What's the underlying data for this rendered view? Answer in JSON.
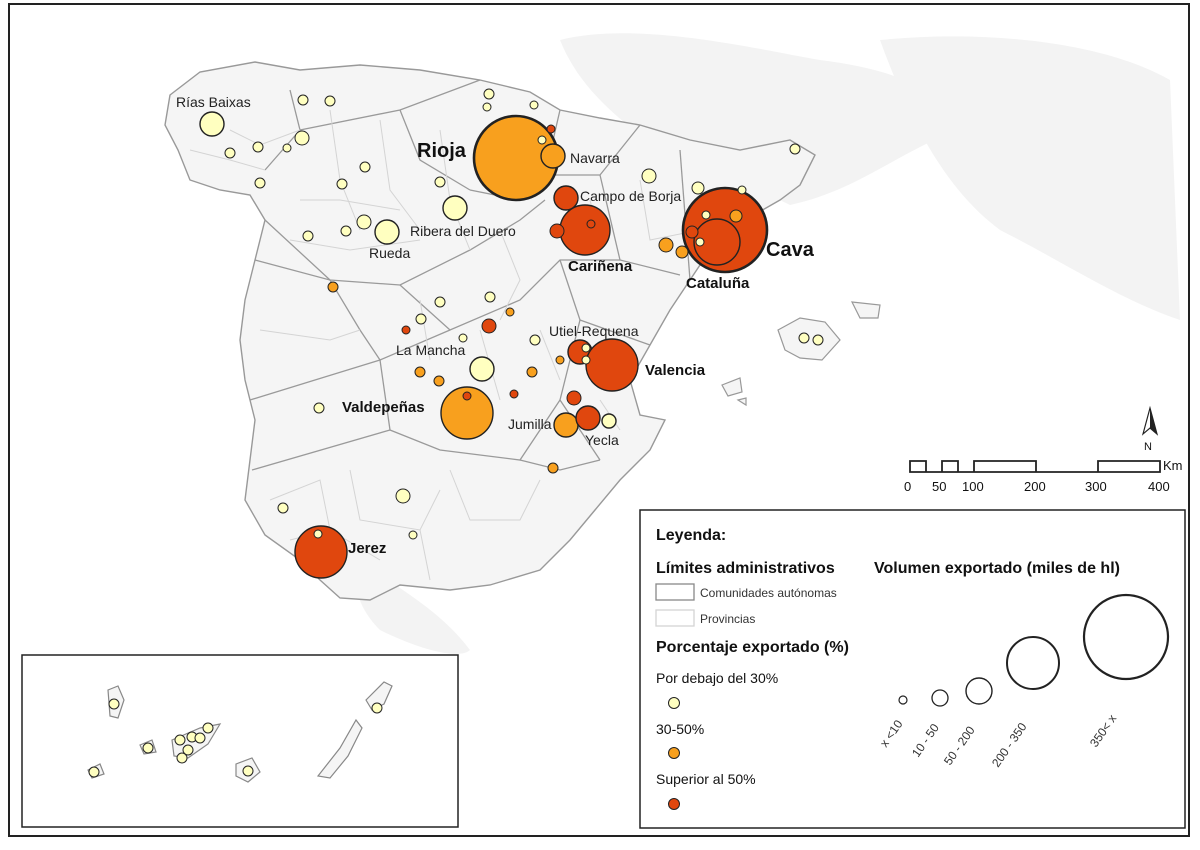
{
  "colors": {
    "below30": "#ffffc0",
    "mid30_50": "#f8a01e",
    "above50": "#e0470e",
    "landmass": "#f5f5f5",
    "sea_shading": "#f2f2f2"
  },
  "regions": [
    {
      "name": "Rías Baixas",
      "style": "normal",
      "pct_class": "below30",
      "volume_class": "10 - 50"
    },
    {
      "name": "Rioja",
      "style": "xl",
      "pct_class": "mid30_50",
      "volume_class": "350< x"
    },
    {
      "name": "Navarra",
      "style": "normal",
      "pct_class": "mid30_50",
      "volume_class": "10 - 50"
    },
    {
      "name": "Campo de Borja",
      "style": "normal",
      "pct_class": "above50",
      "volume_class": "10 - 50"
    },
    {
      "name": "Ribera del Duero",
      "style": "normal",
      "pct_class": "below30",
      "volume_class": "10 - 50"
    },
    {
      "name": "Rueda",
      "style": "normal",
      "pct_class": "below30",
      "volume_class": "10 - 50"
    },
    {
      "name": "Cariñena",
      "style": "bold",
      "pct_class": "above50",
      "volume_class": "50 - 200"
    },
    {
      "name": "Cava",
      "style": "xl",
      "pct_class": "above50",
      "volume_class": "350< x"
    },
    {
      "name": "Cataluña",
      "style": "bold",
      "pct_class": "above50",
      "volume_class": "50 - 200"
    },
    {
      "name": "Utiel-Requena",
      "style": "normal",
      "pct_class": "above50",
      "volume_class": "10 - 50"
    },
    {
      "name": "La Mancha",
      "style": "normal",
      "pct_class": "below30",
      "volume_class": "10 - 50"
    },
    {
      "name": "Valencia",
      "style": "bold",
      "pct_class": "above50",
      "volume_class": "50 - 200"
    },
    {
      "name": "Valdepeñas",
      "style": "bold",
      "pct_class": "mid30_50",
      "volume_class": "50 - 200"
    },
    {
      "name": "Jumilla",
      "style": "normal",
      "pct_class": "mid30_50",
      "volume_class": "10 - 50"
    },
    {
      "name": "Yecla",
      "style": "normal",
      "pct_class": "below30",
      "volume_class": "x <10"
    },
    {
      "name": "Jerez",
      "style": "bold",
      "pct_class": "above50",
      "volume_class": "50 - 200"
    }
  ],
  "scale_bar": {
    "ticks": [
      "0",
      "50",
      "100",
      "200",
      "300",
      "400"
    ],
    "unit": "Km",
    "north_label": "N"
  },
  "legend": {
    "title": "Leyenda:",
    "admin_title": "Límites administrativos",
    "admin_items": [
      "Comunidades autónomas",
      "Provincias"
    ],
    "pct_title": "Porcentaje exportado (%)",
    "pct_items": [
      {
        "label": "Por debajo del 30%",
        "color_key": "below30"
      },
      {
        "label": "30-50%",
        "color_key": "mid30_50"
      },
      {
        "label": "Superior al 50%",
        "color_key": "above50"
      }
    ],
    "vol_title": "Volumen exportado (miles de hl)",
    "vol_items": [
      "x <10",
      "10 - 50",
      "50 - 200",
      "200 - 350",
      "350< x"
    ]
  }
}
